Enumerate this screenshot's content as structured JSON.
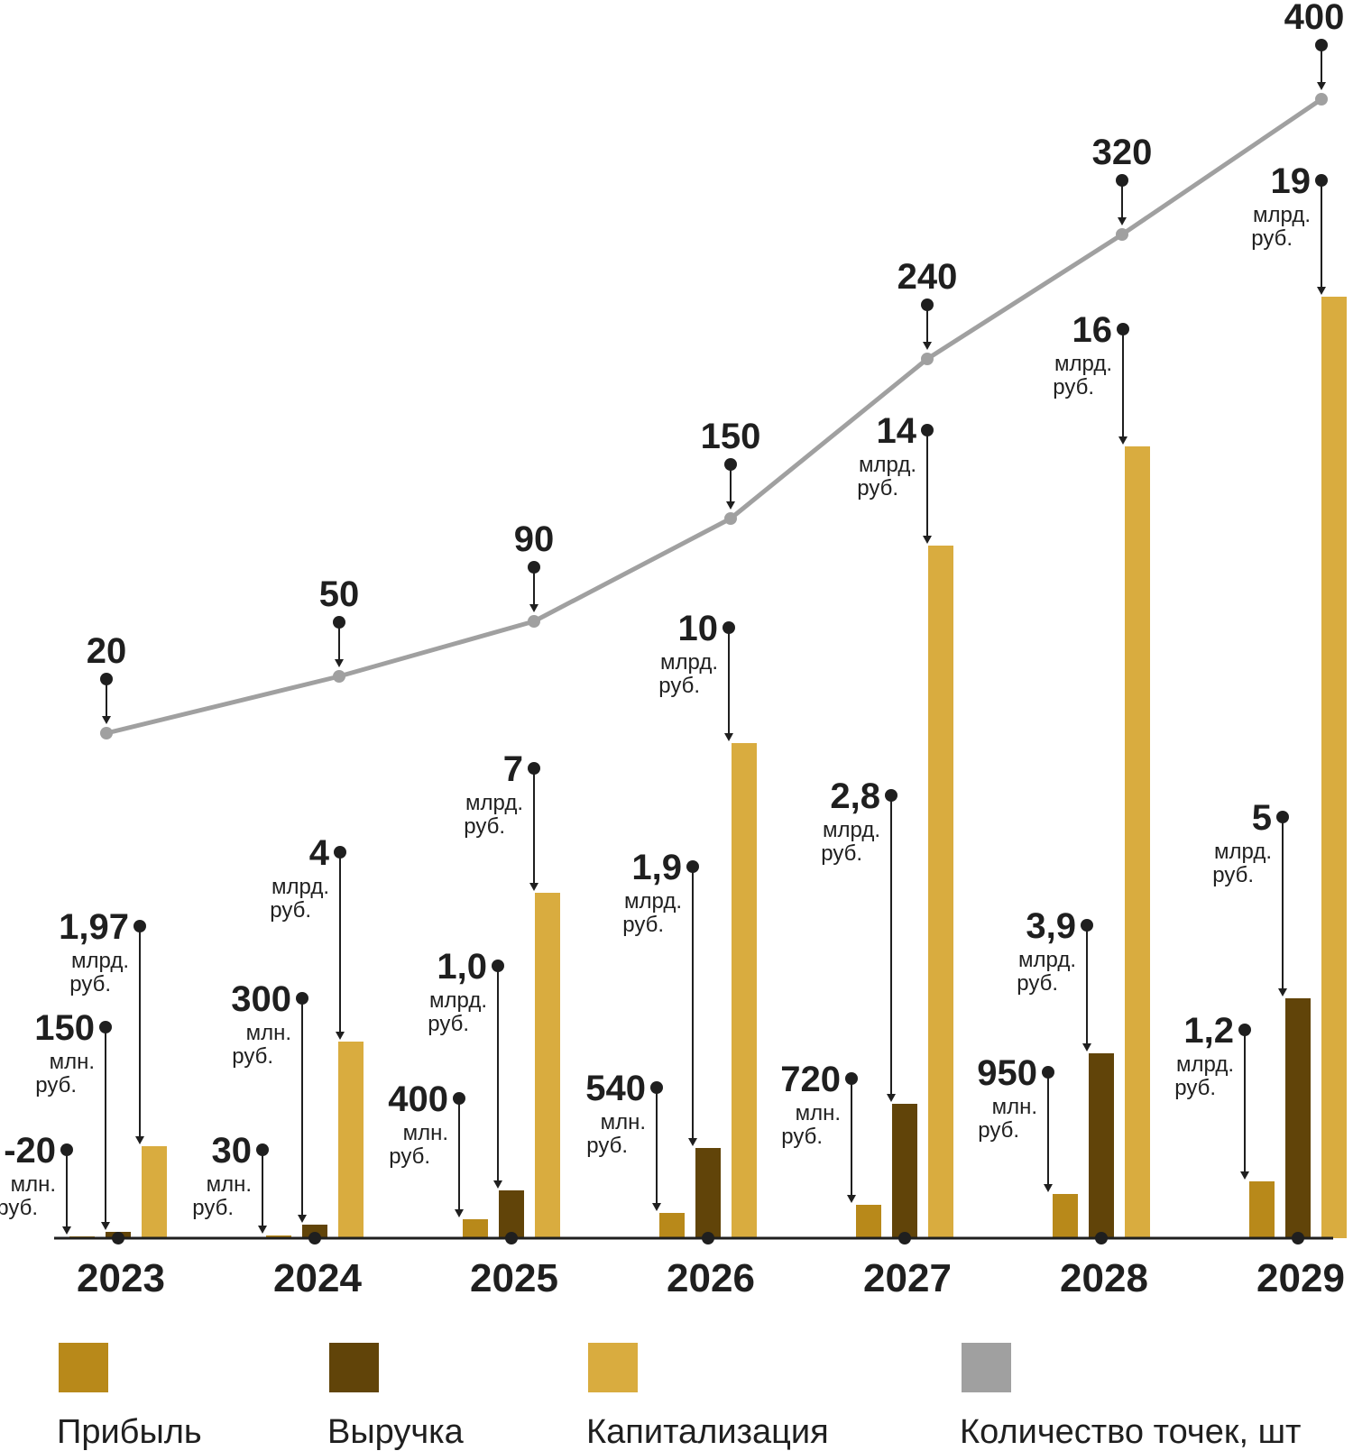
{
  "chart_data": {
    "type": "bar",
    "categories": [
      "2023",
      "2024",
      "2025",
      "2026",
      "2027",
      "2028",
      "2029"
    ],
    "colors": {
      "profit": "#b8891a",
      "revenue": "#614409",
      "capitalization": "#d9ac3f",
      "points": "#a0a0a0"
    },
    "series": [
      {
        "key": "profit",
        "name": "Прибыль",
        "values": [
          -20,
          30,
          400,
          540,
          720,
          950,
          1200
        ],
        "unit_value": "млн. руб.",
        "labels": [
          {
            "main": "-20",
            "unit1": "млн.",
            "unit2": "руб."
          },
          {
            "main": "30",
            "unit1": "млн.",
            "unit2": "руб."
          },
          {
            "main": "400",
            "unit1": "млн.",
            "unit2": "руб."
          },
          {
            "main": "540",
            "unit1": "млн.",
            "unit2": "руб."
          },
          {
            "main": "720",
            "unit1": "млн.",
            "unit2": "руб."
          },
          {
            "main": "950",
            "unit1": "млн.",
            "unit2": "руб."
          },
          {
            "main": "1,2",
            "unit1": "млрд.",
            "unit2": "руб."
          }
        ]
      },
      {
        "key": "revenue",
        "name": "Выручка",
        "values": [
          150,
          300,
          1000,
          1900,
          2800,
          3900,
          5000
        ],
        "unit_value": "млн. руб.",
        "labels": [
          {
            "main": "150",
            "unit1": "млн.",
            "unit2": "руб."
          },
          {
            "main": "300",
            "unit1": "млн.",
            "unit2": "руб."
          },
          {
            "main": "1,0",
            "unit1": "млрд.",
            "unit2": "руб."
          },
          {
            "main": "1,9",
            "unit1": "млрд.",
            "unit2": "руб."
          },
          {
            "main": "2,8",
            "unit1": "млрд.",
            "unit2": "руб."
          },
          {
            "main": "3,9",
            "unit1": "млрд.",
            "unit2": "руб."
          },
          {
            "main": "5",
            "unit1": "млрд.",
            "unit2": "руб."
          }
        ]
      },
      {
        "key": "capitalization",
        "name": "Капитализация",
        "values": [
          1.97,
          4,
          7,
          10,
          14,
          16,
          19
        ],
        "unit_value": "млрд. руб.",
        "labels": [
          {
            "main": "1,97",
            "unit1": "млрд.",
            "unit2": "руб."
          },
          {
            "main": "4",
            "unit1": "млрд.",
            "unit2": "руб."
          },
          {
            "main": "7",
            "unit1": "млрд.",
            "unit2": "руб."
          },
          {
            "main": "10",
            "unit1": "млрд.",
            "unit2": "руб."
          },
          {
            "main": "14",
            "unit1": "млрд.",
            "unit2": "руб."
          },
          {
            "main": "16",
            "unit1": "млрд.",
            "unit2": "руб."
          },
          {
            "main": "19",
            "unit1": "млрд.",
            "unit2": "руб."
          }
        ]
      },
      {
        "key": "points",
        "name": "Количество точек, шт",
        "type": "line",
        "values": [
          20,
          50,
          90,
          150,
          240,
          320,
          400
        ],
        "labels": [
          {
            "main": "20"
          },
          {
            "main": "50"
          },
          {
            "main": "90"
          },
          {
            "main": "150"
          },
          {
            "main": "240"
          },
          {
            "main": "320"
          },
          {
            "main": "400"
          }
        ]
      }
    ],
    "legend": "bottom",
    "grid": false
  }
}
